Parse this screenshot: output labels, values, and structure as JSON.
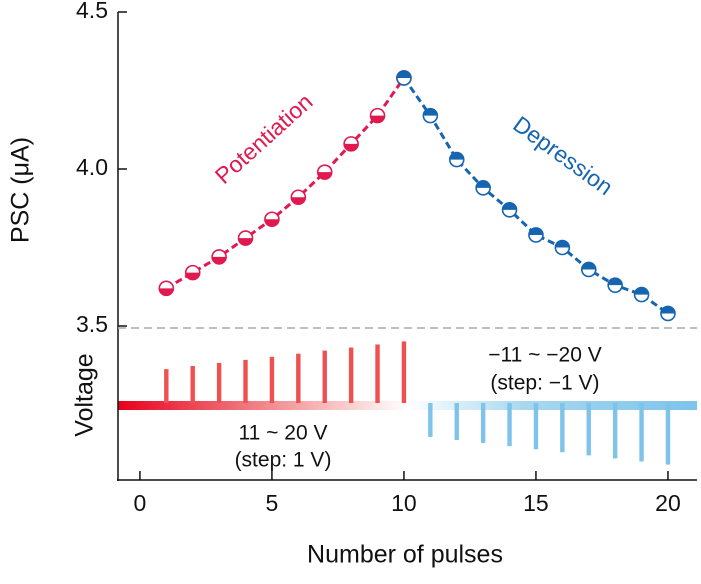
{
  "chart_data": {
    "type": "line",
    "y_label": "PSC (μA)",
    "x_label": "Number of pulses",
    "voltage_label": "Voltage",
    "xlim": [
      -0.83,
      21.1
    ],
    "xticks": [
      0,
      5,
      10,
      15,
      20
    ],
    "ylim": [
      3.5,
      4.5
    ],
    "yticks": [
      3.5,
      {
        "value": 4,
        "label": "4.0"
      },
      4.5
    ],
    "series": [
      {
        "name": "Potentiation",
        "color": "#e0194f",
        "x": [
          1,
          2,
          3,
          4,
          5,
          6,
          7,
          8,
          9,
          10
        ],
        "values": [
          3.62,
          3.67,
          3.72,
          3.78,
          3.84,
          3.91,
          3.99,
          4.08,
          4.17,
          4.29
        ]
      },
      {
        "name": "Depression",
        "color": "#1565b0",
        "x": [
          10,
          11,
          12,
          13,
          14,
          15,
          16,
          17,
          18,
          19,
          20
        ],
        "values": [
          4.29,
          4.17,
          4.03,
          3.94,
          3.87,
          3.79,
          3.75,
          3.68,
          3.63,
          3.6,
          3.54
        ]
      }
    ],
    "vlim": [
      -25,
      25
    ],
    "voltage_pulses": [
      {
        "color": "#f05050",
        "x": [
          1,
          2,
          3,
          4,
          5,
          6,
          7,
          8,
          9,
          10
        ],
        "values": [
          11,
          12,
          13,
          14,
          15,
          16,
          17,
          18,
          19,
          20
        ]
      },
      {
        "color": "#7ec3ea",
        "x": [
          11,
          12,
          13,
          14,
          15,
          16,
          17,
          18,
          19,
          20
        ],
        "values": [
          -11,
          -12,
          -13,
          -14,
          -15,
          -16,
          -17,
          -18,
          -19,
          -20
        ]
      }
    ],
    "annotations": [
      "11 ~ 20 V",
      "(step: 1 V)",
      "−11 ~ −20 V",
      "(step: −1 V)"
    ]
  }
}
